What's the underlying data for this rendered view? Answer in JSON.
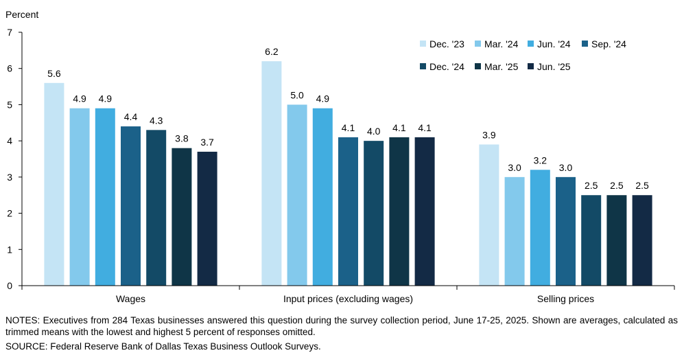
{
  "chart_data": {
    "type": "bar",
    "ylabel": "Percent",
    "ylim": [
      0,
      7
    ],
    "yticks": [
      0,
      1,
      2,
      3,
      4,
      5,
      6,
      7
    ],
    "grid": false,
    "legend_position": "top-right",
    "categories": [
      "Wages",
      "Input prices (excluding wages)",
      "Selling prices"
    ],
    "series": [
      {
        "name": "Dec. '23",
        "color": "#c4e4f5",
        "values": [
          5.6,
          6.2,
          3.9
        ]
      },
      {
        "name": "Mar. '24",
        "color": "#83c9ec",
        "values": [
          4.9,
          5.0,
          3.0
        ]
      },
      {
        "name": "Jun. '24",
        "color": "#41ade0",
        "values": [
          4.9,
          4.9,
          3.2
        ]
      },
      {
        "name": "Sep. '24",
        "color": "#1b6189",
        "values": [
          4.4,
          4.1,
          3.0
        ]
      },
      {
        "name": "Dec. '24",
        "color": "#134a66",
        "values": [
          4.3,
          4.0,
          2.5
        ]
      },
      {
        "name": "Mar. '25",
        "color": "#0f3547",
        "values": [
          3.8,
          4.1,
          2.5
        ]
      },
      {
        "name": "Jun. '25",
        "color": "#132a45",
        "values": [
          3.7,
          4.1,
          2.5
        ]
      }
    ]
  },
  "footer": {
    "notes": "NOTES: Executives from 284 Texas businesses answered this question during the survey collection period, June 17-25, 2025. Shown are averages, calculated as trimmed means with the lowest and highest 5 percent of responses omitted.",
    "source": "SOURCE: Federal Reserve Bank of Dallas Texas Business Outlook Surveys."
  }
}
